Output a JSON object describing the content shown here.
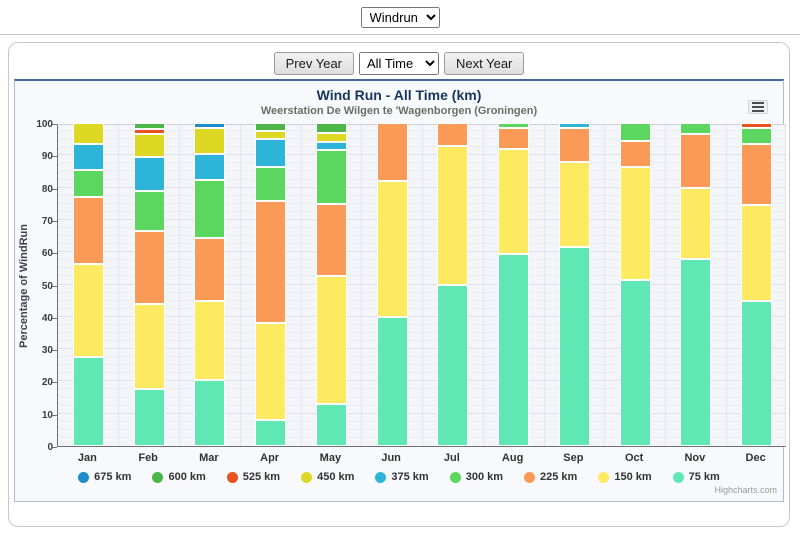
{
  "toolbar": {
    "report_select": "Windrun"
  },
  "controls": {
    "prev_label": "Prev Year",
    "range_select": "All Time",
    "next_label": "Next Year"
  },
  "chart": {
    "title": "Wind Run - All Time (km)",
    "subtitle": "Weerstation De Wilgen te 'Wagenborgen (Groningen)",
    "y_axis_title": "Percentage of WindRun",
    "credits": "Highcharts.com"
  },
  "chart_data": {
    "type": "bar",
    "stacking": "percent",
    "title": "Wind Run - All Time (km)",
    "subtitle": "Weerstation De Wilgen te 'Wagenborgen (Groningen)",
    "xlabel": "",
    "ylabel": "Percentage of WindRun",
    "ylim": [
      0,
      100
    ],
    "yticks": [
      0,
      10,
      20,
      30,
      40,
      50,
      60,
      70,
      80,
      90,
      100
    ],
    "grid": true,
    "legend_position": "bottom",
    "categories": [
      "Jan",
      "Feb",
      "Mar",
      "Apr",
      "May",
      "Jun",
      "Jul",
      "Aug",
      "Sep",
      "Oct",
      "Nov",
      "Dec"
    ],
    "series": [
      {
        "name": "675 km",
        "color": "#1d8cc8",
        "values": [
          0,
          0,
          1.5,
          0,
          0,
          0,
          0,
          0,
          0,
          0,
          0,
          0
        ]
      },
      {
        "name": "600 km",
        "color": "#4cb648",
        "values": [
          0,
          2,
          0,
          2.5,
          3,
          0,
          0,
          0,
          0,
          0,
          0,
          0
        ]
      },
      {
        "name": "525 km",
        "color": "#e8531f",
        "values": [
          0,
          1.5,
          0,
          0,
          0,
          0,
          0,
          0,
          0,
          0,
          0,
          1.5
        ]
      },
      {
        "name": "450 km",
        "color": "#dcd823",
        "values": [
          6.5,
          7,
          8,
          2.5,
          3,
          0,
          0,
          0,
          0,
          0,
          0,
          0
        ]
      },
      {
        "name": "375 km",
        "color": "#2cb5d8",
        "values": [
          8,
          10.5,
          8,
          8.5,
          2.5,
          0,
          0,
          0,
          1.5,
          0,
          0,
          0
        ]
      },
      {
        "name": "300 km",
        "color": "#5bd75f",
        "values": [
          8.5,
          12.5,
          18,
          10.5,
          16.5,
          0,
          0,
          1.5,
          0,
          5.5,
          3.5,
          5
        ]
      },
      {
        "name": "225 km",
        "color": "#fb9a57",
        "values": [
          20.5,
          22.5,
          19.5,
          38,
          22.5,
          18,
          7,
          6.5,
          10.5,
          8,
          16.5,
          19
        ]
      },
      {
        "name": "150 km",
        "color": "#fdea61",
        "values": [
          29,
          26.5,
          24.5,
          30,
          39.5,
          42,
          43,
          32.5,
          26.5,
          35,
          22,
          29.5
        ]
      },
      {
        "name": "75 km",
        "color": "#5fe8b4",
        "values": [
          27.5,
          17.5,
          20.5,
          8,
          13,
          40,
          50,
          59.5,
          61.5,
          51.5,
          58,
          45
        ]
      }
    ]
  }
}
